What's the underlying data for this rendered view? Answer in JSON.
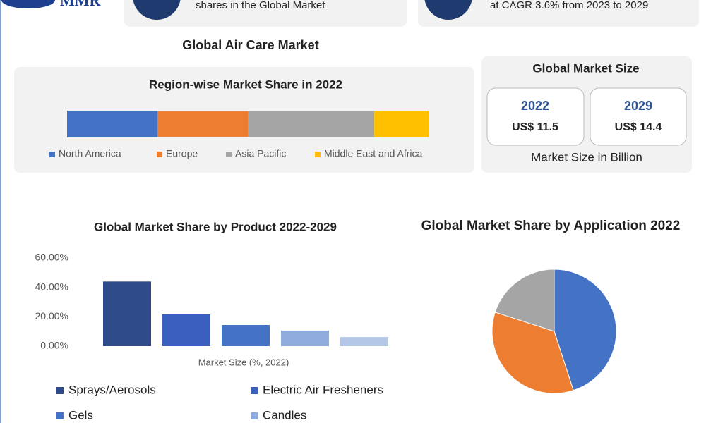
{
  "header": {
    "logo": "MMR",
    "card_left": "shares in the Global Market",
    "card_right": "at CAGR 3.6% from 2023 to 2029",
    "title": "Global Air Care Market"
  },
  "market_size": {
    "title": "Global Market Size",
    "boxes": [
      {
        "year": "2022",
        "value": "US$ 11.5"
      },
      {
        "year": "2029",
        "value": "US$ 14.4"
      }
    ],
    "note": "Market Size in Billion"
  },
  "chart_data": [
    {
      "type": "stacked_hbar",
      "title": "Region-wise Market Share in 2022",
      "series": [
        {
          "name": "North America",
          "color": "#4472c4",
          "values": [
            25
          ]
        },
        {
          "name": "Europe",
          "color": "#ed7d31",
          "values": [
            25
          ]
        },
        {
          "name": "Asia Pacific",
          "color": "#a5a5a5",
          "values": [
            35
          ]
        },
        {
          "name": "Middle East and Africa",
          "color": "#ffc000",
          "values": [
            15
          ]
        }
      ]
    },
    {
      "type": "bar",
      "title": "Global Market Share by Product 2022-2029",
      "x_label": "Market Size (%, 2022)",
      "categories": [
        "Sprays/Aerosols",
        "Electric Air Fresheners",
        "Gels",
        "Candles",
        null
      ],
      "values": [
        44,
        21.6,
        14.4,
        10.6,
        6.2
      ],
      "colors": [
        "#2f4b8a",
        "#3a5fbf",
        "#4472c4",
        "#8faadc",
        "#b4c7e7"
      ],
      "ylim": [
        0,
        60
      ],
      "yticks": [
        {
          "value": 0,
          "label": "0.00%"
        },
        {
          "value": 20,
          "label": "20.00%"
        },
        {
          "value": 40,
          "label": "40.00%"
        },
        {
          "value": 60,
          "label": "60.00%"
        }
      ]
    },
    {
      "type": "pie",
      "title": "Global Market Share by Application 2022",
      "categories": [
        null,
        null,
        null
      ],
      "values": [
        45,
        35,
        20
      ],
      "colors": [
        "#4472c4",
        "#ed7d31",
        "#a5a5a5"
      ]
    }
  ]
}
